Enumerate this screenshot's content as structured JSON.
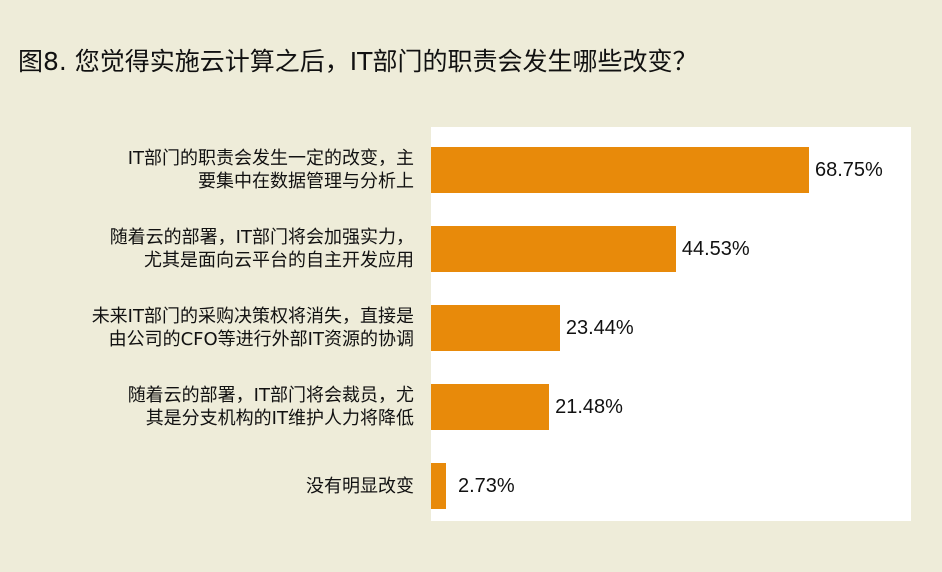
{
  "chart_data": {
    "type": "bar",
    "orientation": "horizontal",
    "title": "图8. 您觉得实施云计算之后，IT部门的职责会发生哪些改变？",
    "categories": [
      [
        "IT部门的职责会发生一定的改变，主",
        "要集中在数据管理与分析上"
      ],
      [
        "随着云的部署，IT部门将会加强实力，",
        "尤其是面向云平台的自主开发应用"
      ],
      [
        "未来IT部门的采购决策权将消失，直接是",
        "由公司的CFO等进行外部IT资源的协调"
      ],
      [
        "随着云的部署，IT部门将会裁员，尤",
        "其是分支机构的IT维护人力将降低"
      ],
      [
        "没有明显改变"
      ]
    ],
    "values": [
      68.75,
      44.53,
      23.44,
      21.48,
      2.73
    ],
    "data_labels": [
      "68.75%",
      "44.53%",
      "23.44%",
      "21.48%",
      "2.73%"
    ],
    "xlim": [
      0,
      87.3
    ],
    "grid": false,
    "bar_color": "#e88a0a",
    "background_color": "#eeecd9"
  }
}
